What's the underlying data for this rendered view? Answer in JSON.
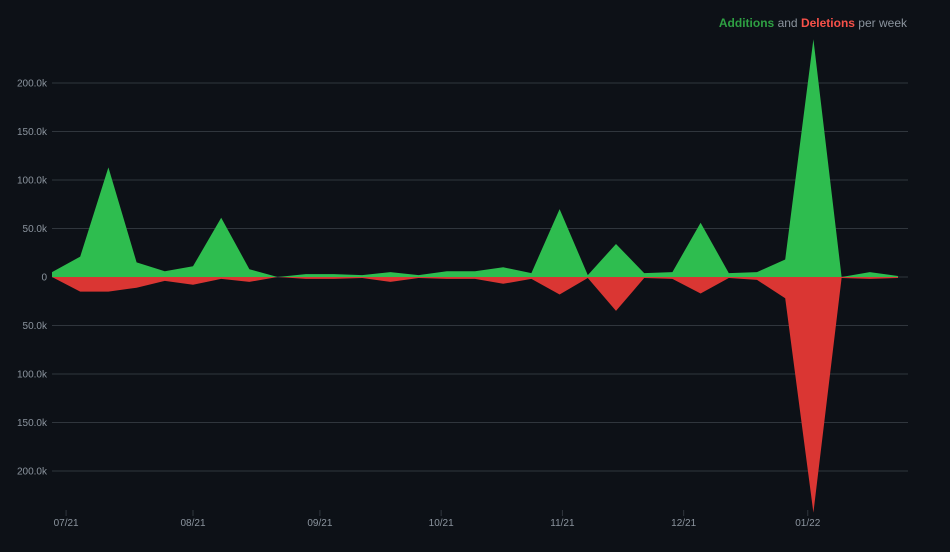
{
  "legend": {
    "additions_label": "Additions",
    "and_text": "and",
    "deletions_label": "Deletions",
    "suffix_text": "per week"
  },
  "colors": {
    "additions": "#2ebd4f",
    "deletions": "#da3633",
    "grid": "#30363d",
    "text": "#8b949e",
    "background": "#0d1117"
  },
  "chart_data": {
    "type": "area",
    "title": "Additions and Deletions per week",
    "y_tick_labels": [
      "200.0k",
      "150.0k",
      "100.0k",
      "50.0k",
      "0",
      "50.0k",
      "100.0k",
      "150.0k",
      "200.0k"
    ],
    "y_tick_values": [
      200000,
      150000,
      100000,
      50000,
      0,
      -50000,
      -100000,
      -150000,
      -200000
    ],
    "ylim": [
      -245000,
      245000
    ],
    "x_tick_labels": [
      "07/21",
      "08/21",
      "09/21",
      "10/21",
      "11/21",
      "12/21",
      "01/22"
    ],
    "x_tick_week_index": [
      0.5,
      5,
      9.5,
      13.8,
      18.1,
      22.4,
      26.8
    ],
    "weeks": 31,
    "series": [
      {
        "name": "Additions",
        "values": [
          5000,
          21000,
          113000,
          15000,
          6000,
          11000,
          61000,
          8000,
          0,
          3000,
          3000,
          2000,
          5000,
          2000,
          6000,
          6000,
          10000,
          4000,
          70000,
          2000,
          34000,
          4000,
          5000,
          56000,
          4000,
          5000,
          18000,
          245000,
          0,
          5000,
          1000
        ]
      },
      {
        "name": "Deletions",
        "values": [
          0,
          -15000,
          -15000,
          -11000,
          -4000,
          -8000,
          -2000,
          -5000,
          0,
          -2000,
          -2000,
          -1000,
          -5000,
          -1000,
          -2000,
          -2000,
          -7000,
          -2000,
          -18000,
          -1000,
          -35000,
          -1000,
          -2000,
          -17000,
          -1000,
          -3000,
          -22000,
          -243000,
          -1000,
          -2000,
          -1000
        ]
      }
    ]
  }
}
